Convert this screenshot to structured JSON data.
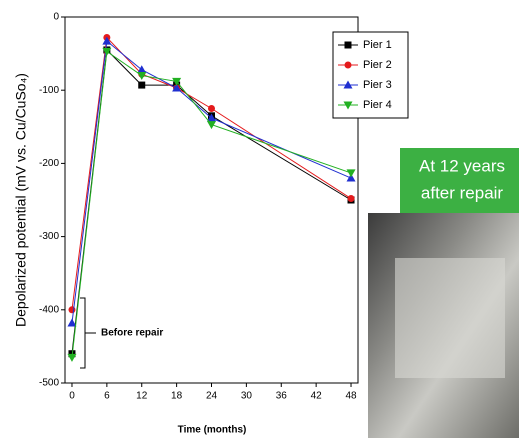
{
  "chart_data": {
    "type": "line",
    "x_label": "Time (months)",
    "y_label": "Depolarized potential (mV vs. Cu/CuSo₄)",
    "x": [
      0,
      6,
      12,
      18,
      24,
      48
    ],
    "series": [
      {
        "name": "Pier 1",
        "color": "#000000",
        "marker": "square",
        "values": [
          -460,
          -45,
          -93,
          -93,
          -135,
          -250
        ]
      },
      {
        "name": "Pier 2",
        "color": "#e41a1c",
        "marker": "circle",
        "values": [
          -400,
          -28,
          -78,
          -97,
          -125,
          -248
        ]
      },
      {
        "name": "Pier 3",
        "color": "#1f2fd0",
        "marker": "triangle-up",
        "values": [
          -418,
          -33,
          -72,
          -97,
          -138,
          -220
        ]
      },
      {
        "name": "Pier 4",
        "color": "#22b022",
        "marker": "triangle-down",
        "values": [
          -465,
          -47,
          -80,
          -88,
          -147,
          -213
        ]
      }
    ],
    "xlim": [
      -1.2,
      49.2
    ],
    "xticks": [
      0,
      6,
      12,
      18,
      24,
      30,
      36,
      42,
      48
    ],
    "ylim": [
      -500,
      0
    ],
    "yticks": [
      0,
      -100,
      -200,
      -300,
      -400,
      -500
    ],
    "legend": "upper right",
    "annotation": "Before repair",
    "inset_caption": [
      "At 12 years",
      "after repair"
    ]
  }
}
